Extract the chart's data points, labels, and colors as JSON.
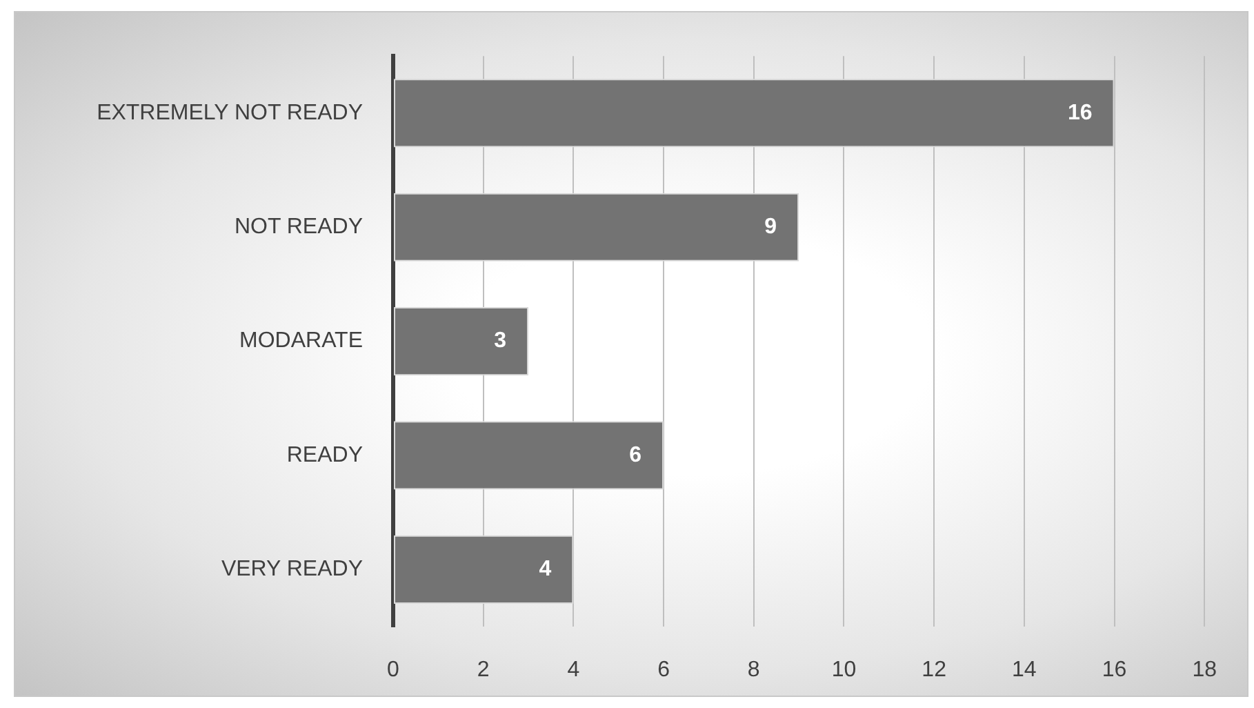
{
  "chart_data": {
    "type": "bar",
    "orientation": "horizontal",
    "categories": [
      "EXTREMELY NOT READY",
      "NOT READY",
      "MODARATE",
      "READY",
      "VERY READY"
    ],
    "values": [
      16,
      9,
      3,
      6,
      4
    ],
    "color": "#737373",
    "xlim": [
      0,
      18
    ],
    "xticks": [
      0,
      2,
      4,
      6,
      8,
      10,
      12,
      14,
      16,
      18
    ],
    "grid": "x",
    "data_labels": true
  }
}
